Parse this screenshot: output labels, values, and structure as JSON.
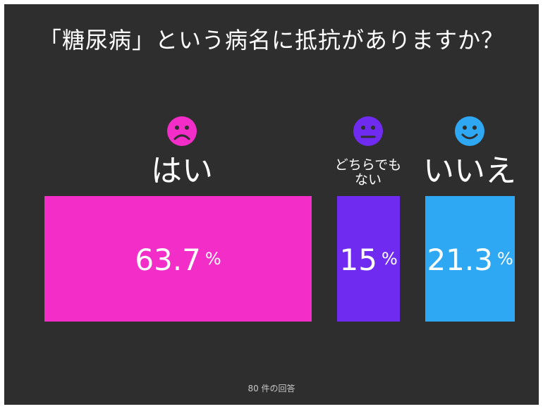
{
  "chart_data": {
    "type": "bar",
    "title": "「糖尿病」という病名に抵抗がありますか？",
    "categories": [
      "はい",
      "どちらでもない",
      "いいえ"
    ],
    "values": [
      63.7,
      15,
      21.3
    ],
    "unit": "%",
    "colors": [
      "#f22dc8",
      "#6f2cf0",
      "#2ea8f2"
    ],
    "icons": [
      "frown-face-icon",
      "neutral-face-icon",
      "smile-face-icon"
    ],
    "category_display": [
      {
        "line1": "はい",
        "line2": ""
      },
      {
        "line1": "どちらでも",
        "line2": "ない"
      },
      {
        "line1": "いいえ",
        "line2": ""
      }
    ]
  },
  "value_labels": [
    "63.7",
    "15",
    "21.3"
  ],
  "footer": "80 件の回答"
}
